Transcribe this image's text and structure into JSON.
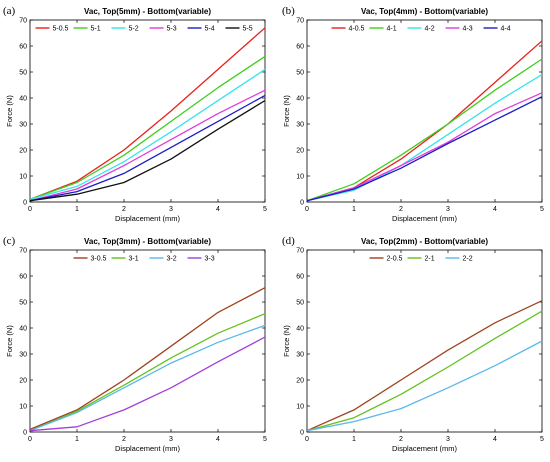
{
  "chart_data": [
    {
      "panel": "(a)",
      "type": "line",
      "title": "Vac, Top(5mm) - Bottom(variable)",
      "xlabel": "Displacement (mm)",
      "ylabel": "Force (N)",
      "xlim": [
        0,
        5
      ],
      "ylim": [
        0,
        70
      ],
      "xticks": [
        0,
        1,
        2,
        3,
        4,
        5
      ],
      "yticks": [
        0,
        10,
        20,
        30,
        40,
        50,
        60,
        70
      ],
      "legend_position": "top",
      "x": [
        0,
        1,
        2,
        3,
        4,
        5
      ],
      "series": [
        {
          "name": "5-0.5",
          "color": "#e8211b",
          "values": [
            1,
            8,
            20,
            35,
            51,
            67
          ]
        },
        {
          "name": "5-1",
          "color": "#3ecf1e",
          "values": [
            1,
            7.5,
            18,
            31,
            44,
            56
          ]
        },
        {
          "name": "5-2",
          "color": "#36e3ef",
          "values": [
            1,
            6,
            15.5,
            27,
            39,
            51
          ]
        },
        {
          "name": "5-3",
          "color": "#e03cda",
          "values": [
            0.5,
            5,
            14,
            24,
            34,
            43
          ]
        },
        {
          "name": "5-4",
          "color": "#1c1cc8",
          "values": [
            0.5,
            4,
            11,
            21,
            31,
            41
          ]
        },
        {
          "name": "5-5",
          "color": "#111111",
          "values": [
            0.5,
            3,
            7.5,
            16.5,
            28,
            39
          ]
        }
      ]
    },
    {
      "panel": "(b)",
      "type": "line",
      "title": "Vac, Top(4mm) - Bottom(variable)",
      "xlabel": "Displacement (mm)",
      "ylabel": "Force (N)",
      "xlim": [
        0,
        5
      ],
      "ylim": [
        0,
        70
      ],
      "xticks": [
        0,
        1,
        2,
        3,
        4,
        5
      ],
      "yticks": [
        0,
        10,
        20,
        30,
        40,
        50,
        60,
        70
      ],
      "legend_position": "top",
      "x": [
        0,
        1,
        2,
        3,
        4,
        5
      ],
      "series": [
        {
          "name": "4-0.5",
          "color": "#e8211b",
          "values": [
            0.5,
            5.5,
            16.5,
            30,
            46,
            62
          ]
        },
        {
          "name": "4-1",
          "color": "#3ecf1e",
          "values": [
            0.5,
            7,
            18,
            30,
            43,
            55
          ]
        },
        {
          "name": "4-2",
          "color": "#36e3ef",
          "values": [
            0.5,
            4.5,
            14,
            26,
            38,
            49
          ]
        },
        {
          "name": "4-3",
          "color": "#e03cda",
          "values": [
            0.5,
            5.5,
            14,
            23,
            34,
            42
          ]
        },
        {
          "name": "4-4",
          "color": "#1c1cc8",
          "values": [
            0.5,
            5,
            13,
            22.5,
            31.5,
            40.5
          ]
        }
      ]
    },
    {
      "panel": "(c)",
      "type": "line",
      "title": "Vac, Top(3mm) - Bottom(variable)",
      "xlabel": "Displacement (mm)",
      "ylabel": "Force (N)",
      "xlim": [
        0,
        5
      ],
      "ylim": [
        0,
        70
      ],
      "xticks": [
        0,
        1,
        2,
        3,
        4,
        5
      ],
      "yticks": [
        0,
        10,
        20,
        30,
        40,
        50,
        60,
        70
      ],
      "legend_position": "top",
      "x": [
        0,
        1,
        2,
        3,
        4,
        5
      ],
      "series": [
        {
          "name": "3-0.5",
          "color": "#a0421e",
          "values": [
            1,
            8.5,
            20,
            33,
            46,
            55.5
          ]
        },
        {
          "name": "3-1",
          "color": "#64c21e",
          "values": [
            0.5,
            8,
            18,
            28.5,
            38,
            45.5
          ]
        },
        {
          "name": "3-2",
          "color": "#5ab9ea",
          "values": [
            0.5,
            7.5,
            17,
            26.5,
            34.5,
            41
          ]
        },
        {
          "name": "3-3",
          "color": "#a040d8",
          "values": [
            0.5,
            2,
            8.5,
            17,
            27,
            36.5
          ]
        }
      ]
    },
    {
      "panel": "(d)",
      "type": "line",
      "title": "Vac, Top(2mm) - Bottom(variable)",
      "xlabel": "Displacement (mm)",
      "ylabel": "Force (N)",
      "xlim": [
        0,
        5
      ],
      "ylim": [
        0,
        70
      ],
      "xticks": [
        0,
        1,
        2,
        3,
        4,
        5
      ],
      "yticks": [
        0,
        10,
        20,
        30,
        40,
        50,
        60,
        70
      ],
      "legend_position": "top",
      "x": [
        0,
        1,
        2,
        3,
        4,
        5
      ],
      "series": [
        {
          "name": "2-0.5",
          "color": "#a0421e",
          "values": [
            0.5,
            8.5,
            20,
            31.5,
            42,
            50.5
          ]
        },
        {
          "name": "2-1",
          "color": "#64c21e",
          "values": [
            0.5,
            5.5,
            14.5,
            25,
            36,
            46.5
          ]
        },
        {
          "name": "2-2",
          "color": "#5ab9ea",
          "values": [
            0.5,
            4,
            9,
            17,
            25.5,
            35
          ]
        }
      ]
    }
  ]
}
